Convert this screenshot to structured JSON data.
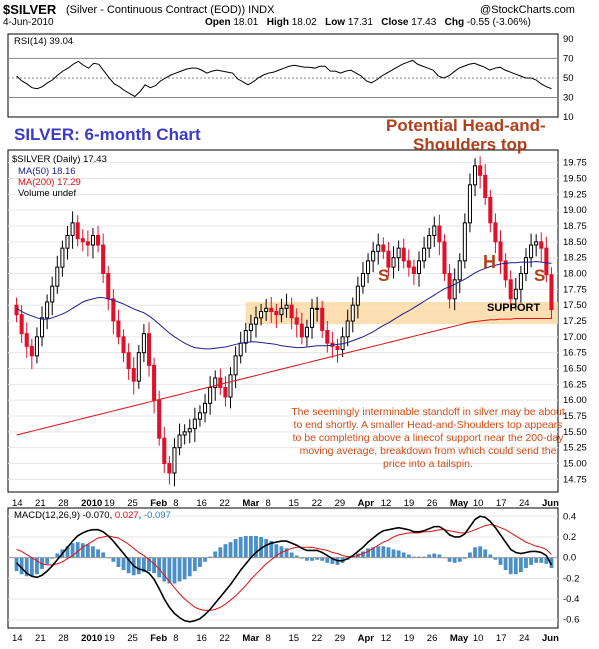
{
  "header": {
    "symbol": "$SILVER",
    "description": "(Silver - Continuous Contract (EOD)) INDX",
    "copyright": "@StockCharts.com",
    "date": "4-Jun-2010",
    "open_label": "Open",
    "open": "18.01",
    "high_label": "High",
    "high": "18.02",
    "low_label": "Low",
    "low": "17.31",
    "close_label": "Close",
    "close": "17.43",
    "chg_label": "Chg",
    "chg": "-0.55 (-3.06%)"
  },
  "rsi_panel": {
    "label": "RSI(14) 39.04"
  },
  "price_panel": {
    "legend_symbol": "$SILVER (Daily) 17.43",
    "legend_ma50": "MA(50) 18.16",
    "legend_ma200": "MA(200) 17.29",
    "legend_volume": "Volume undef"
  },
  "annotations": {
    "chart_title": "SILVER: 6-month Chart",
    "hs_title_line1": "Potential Head-and-",
    "hs_title_line2": "Shoulders top",
    "left_shoulder": "S",
    "head": "H",
    "right_shoulder": "S",
    "support": "SUPPORT",
    "note": "The seemingly interminable standoff in silver may be about to end shortly. A smaller Head-and-Shoulders top appears to be completing above a linecof support near the 200-day moving average, breakdown from which could send the price into a tailspin."
  },
  "macd_panel": {
    "label": "MACD(12,26,9)",
    "macd": "-0.070",
    "signal": "0.027",
    "hist": "-0.097"
  },
  "colors": {
    "up_candle": "#000000",
    "down_candle": "#e0102a",
    "ma50": "#1c1c8c",
    "ma200": "#e01010",
    "support_zone": "#fbd9a6",
    "title_blue": "#3b3bc7",
    "title_red": "#b0401c",
    "hist": "#4a8fc8",
    "macd_line": "#000000",
    "signal_line": "#e01010"
  },
  "chart_data": [
    {
      "type": "line",
      "title": "RSI(14)",
      "yticks": [
        10,
        30,
        50,
        70,
        90
      ],
      "ylim": [
        10,
        95
      ],
      "reference_lines": [
        30,
        50,
        70
      ],
      "series": [
        {
          "name": "RSI(14)",
          "values": [
            52,
            47,
            44,
            40,
            39,
            41,
            45,
            48,
            53,
            57,
            60,
            64,
            67,
            63,
            60,
            65,
            64,
            57,
            50,
            44,
            41,
            37,
            34,
            31,
            36,
            43,
            40,
            42,
            47,
            50,
            53,
            55,
            57,
            59,
            60,
            60,
            58,
            55,
            57,
            58,
            57,
            56,
            55,
            49,
            46,
            43,
            46,
            50,
            53,
            55,
            56,
            58,
            60,
            62,
            63,
            62,
            61,
            61,
            60,
            62,
            62,
            57,
            57,
            55,
            57,
            58,
            55,
            52,
            47,
            45,
            48,
            52,
            55,
            58,
            61,
            64,
            66,
            68,
            64,
            62,
            60,
            58,
            52,
            50,
            52,
            56,
            60,
            62,
            64,
            65,
            63,
            61,
            58,
            60,
            61,
            58,
            56,
            54,
            52,
            50,
            50,
            48,
            44,
            41,
            39.04
          ]
        }
      ]
    },
    {
      "type": "candlestick",
      "title": "$SILVER (Daily)",
      "yticks": [
        14.75,
        15.0,
        15.25,
        15.5,
        15.75,
        16.0,
        16.25,
        16.5,
        16.75,
        17.0,
        17.25,
        17.5,
        17.75,
        18.0,
        18.25,
        18.5,
        18.75,
        19.0,
        19.25,
        19.5,
        19.75
      ],
      "ylim": [
        14.55,
        19.95
      ],
      "xticks": [
        "14",
        "21",
        "28",
        "2010",
        "19",
        "25",
        "Feb",
        "8",
        "16",
        "22",
        "Mar",
        "8",
        "15",
        "22",
        "29",
        "Apr",
        "12",
        "19",
        "26",
        "May",
        "10",
        "17",
        "24",
        "Jun"
      ],
      "ma50_name": "MA(50)",
      "ma200_name": "MA(200)",
      "support_zone": [
        17.2,
        17.55
      ],
      "close": [
        17.35,
        17.05,
        16.85,
        16.7,
        17.0,
        17.3,
        17.55,
        17.8,
        18.1,
        18.4,
        18.6,
        18.8,
        18.55,
        18.5,
        18.45,
        18.6,
        18.45,
        18.0,
        17.6,
        17.25,
        17.0,
        16.75,
        16.5,
        16.3,
        16.75,
        17.05,
        16.55,
        16.0,
        15.4,
        15.0,
        14.85,
        15.25,
        15.45,
        15.5,
        15.55,
        15.7,
        15.8,
        15.95,
        16.2,
        16.35,
        16.2,
        16.05,
        16.4,
        16.7,
        16.9,
        17.1,
        17.2,
        17.3,
        17.4,
        17.45,
        17.4,
        17.35,
        17.45,
        17.5,
        17.3,
        17.2,
        17.0,
        17.15,
        17.45,
        17.45,
        17.1,
        16.9,
        16.85,
        16.8,
        17.0,
        17.25,
        17.5,
        17.8,
        18.0,
        18.2,
        18.35,
        18.45,
        18.35,
        18.1,
        18.25,
        18.4,
        18.2,
        18.1,
        18.0,
        18.2,
        18.4,
        18.6,
        18.75,
        18.5,
        18.0,
        17.6,
        17.9,
        18.2,
        18.8,
        19.4,
        19.7,
        19.55,
        19.2,
        18.8,
        18.5,
        18.2,
        17.9,
        17.6,
        17.75,
        18.0,
        18.25,
        18.45,
        18.5,
        18.4,
        17.98,
        17.43
      ],
      "ma50": [
        17.45,
        17.4,
        17.36,
        17.33,
        17.3,
        17.28,
        17.28,
        17.3,
        17.33,
        17.36,
        17.4,
        17.45,
        17.5,
        17.55,
        17.58,
        17.6,
        17.62,
        17.62,
        17.6,
        17.58,
        17.55,
        17.52,
        17.48,
        17.44,
        17.41,
        17.38,
        17.33,
        17.27,
        17.2,
        17.13,
        17.06,
        17.0,
        16.95,
        16.9,
        16.86,
        16.83,
        16.82,
        16.81,
        16.81,
        16.82,
        16.83,
        16.84,
        16.86,
        16.88,
        16.9,
        16.91,
        16.92,
        16.92,
        16.91,
        16.9,
        16.89,
        16.88,
        16.86,
        16.85,
        16.84,
        16.83,
        16.83,
        16.84,
        16.85,
        16.86,
        16.86,
        16.86,
        16.87,
        16.88,
        16.89,
        16.91,
        16.94,
        16.97,
        17.0,
        17.04,
        17.08,
        17.13,
        17.18,
        17.22,
        17.27,
        17.32,
        17.37,
        17.41,
        17.46,
        17.51,
        17.56,
        17.61,
        17.66,
        17.71,
        17.76,
        17.79,
        17.83,
        17.87,
        17.91,
        17.96,
        18.01,
        18.05,
        18.08,
        18.11,
        18.13,
        18.15,
        18.16,
        18.17,
        18.17,
        18.18,
        18.18,
        18.18,
        18.19,
        18.18,
        18.17,
        18.16
      ],
      "ma200": [
        15.45,
        15.47,
        15.49,
        15.51,
        15.53,
        15.55,
        15.57,
        15.59,
        15.61,
        15.63,
        15.65,
        15.67,
        15.69,
        15.71,
        15.73,
        15.75,
        15.77,
        15.79,
        15.81,
        15.83,
        15.85,
        15.87,
        15.89,
        15.91,
        15.93,
        15.95,
        15.97,
        15.99,
        16.01,
        16.03,
        16.05,
        16.07,
        16.09,
        16.11,
        16.13,
        16.15,
        16.17,
        16.19,
        16.21,
        16.23,
        16.25,
        16.27,
        16.29,
        16.31,
        16.33,
        16.35,
        16.37,
        16.39,
        16.41,
        16.43,
        16.45,
        16.47,
        16.49,
        16.51,
        16.53,
        16.55,
        16.57,
        16.59,
        16.61,
        16.63,
        16.65,
        16.67,
        16.69,
        16.71,
        16.73,
        16.75,
        16.77,
        16.79,
        16.81,
        16.83,
        16.85,
        16.87,
        16.89,
        16.91,
        16.93,
        16.95,
        16.97,
        16.99,
        17.01,
        17.03,
        17.05,
        17.07,
        17.09,
        17.11,
        17.13,
        17.15,
        17.17,
        17.19,
        17.21,
        17.23,
        17.24,
        17.25,
        17.26,
        17.27,
        17.27,
        17.28,
        17.28,
        17.28,
        17.29,
        17.29,
        17.29,
        17.29,
        17.29,
        17.29,
        17.29,
        17.29
      ]
    },
    {
      "type": "line",
      "title": "MACD(12,26,9)",
      "yticks": [
        0.4,
        0.2,
        0.0,
        -0.2,
        -0.4,
        -0.6
      ],
      "ylim": [
        -0.68,
        0.48
      ],
      "series": [
        {
          "name": "MACD",
          "values": [
            -0.05,
            -0.1,
            -0.15,
            -0.18,
            -0.19,
            -0.17,
            -0.13,
            -0.08,
            -0.02,
            0.04,
            0.1,
            0.16,
            0.21,
            0.24,
            0.26,
            0.27,
            0.27,
            0.25,
            0.21,
            0.16,
            0.1,
            0.04,
            -0.02,
            -0.08,
            -0.11,
            -0.12,
            -0.15,
            -0.21,
            -0.3,
            -0.4,
            -0.48,
            -0.54,
            -0.58,
            -0.61,
            -0.62,
            -0.61,
            -0.59,
            -0.55,
            -0.5,
            -0.44,
            -0.38,
            -0.32,
            -0.26,
            -0.19,
            -0.12,
            -0.06,
            0.0,
            0.05,
            0.09,
            0.12,
            0.14,
            0.15,
            0.16,
            0.16,
            0.14,
            0.12,
            0.09,
            0.07,
            0.07,
            0.07,
            0.05,
            0.02,
            -0.01,
            -0.03,
            -0.03,
            -0.01,
            0.02,
            0.06,
            0.1,
            0.15,
            0.19,
            0.23,
            0.26,
            0.27,
            0.28,
            0.29,
            0.28,
            0.27,
            0.25,
            0.25,
            0.26,
            0.28,
            0.3,
            0.3,
            0.27,
            0.22,
            0.2,
            0.2,
            0.23,
            0.3,
            0.37,
            0.4,
            0.39,
            0.35,
            0.29,
            0.22,
            0.15,
            0.08,
            0.05,
            0.04,
            0.05,
            0.06,
            0.06,
            0.05,
            0.02,
            -0.07
          ]
        },
        {
          "name": "Signal",
          "values": [
            0.08,
            0.06,
            0.03,
            0.0,
            -0.03,
            -0.06,
            -0.07,
            -0.07,
            -0.06,
            -0.04,
            -0.01,
            0.02,
            0.06,
            0.1,
            0.13,
            0.16,
            0.19,
            0.2,
            0.21,
            0.2,
            0.19,
            0.16,
            0.13,
            0.09,
            0.05,
            0.02,
            -0.02,
            -0.06,
            -0.11,
            -0.17,
            -0.23,
            -0.29,
            -0.35,
            -0.4,
            -0.44,
            -0.48,
            -0.5,
            -0.51,
            -0.51,
            -0.5,
            -0.48,
            -0.45,
            -0.41,
            -0.37,
            -0.32,
            -0.27,
            -0.21,
            -0.16,
            -0.11,
            -0.06,
            -0.02,
            0.02,
            0.05,
            0.07,
            0.09,
            0.1,
            0.1,
            0.1,
            0.1,
            0.09,
            0.08,
            0.07,
            0.05,
            0.04,
            0.02,
            0.01,
            0.01,
            0.02,
            0.04,
            0.06,
            0.09,
            0.12,
            0.15,
            0.17,
            0.2,
            0.22,
            0.23,
            0.24,
            0.24,
            0.24,
            0.25,
            0.25,
            0.26,
            0.27,
            0.27,
            0.26,
            0.25,
            0.24,
            0.24,
            0.25,
            0.27,
            0.29,
            0.31,
            0.32,
            0.31,
            0.29,
            0.27,
            0.24,
            0.21,
            0.18,
            0.15,
            0.13,
            0.11,
            0.1,
            0.08,
            0.03
          ]
        },
        {
          "name": "Histogram",
          "values": [
            -0.13,
            -0.16,
            -0.18,
            -0.18,
            -0.16,
            -0.11,
            -0.06,
            -0.01,
            0.04,
            0.08,
            0.11,
            0.14,
            0.15,
            0.14,
            0.13,
            0.11,
            0.08,
            0.05,
            0.0,
            -0.04,
            -0.09,
            -0.12,
            -0.15,
            -0.17,
            -0.16,
            -0.14,
            -0.13,
            -0.15,
            -0.19,
            -0.23,
            -0.25,
            -0.25,
            -0.23,
            -0.21,
            -0.18,
            -0.13,
            -0.09,
            -0.04,
            0.01,
            0.06,
            0.1,
            0.13,
            0.15,
            0.18,
            0.2,
            0.21,
            0.21,
            0.21,
            0.2,
            0.18,
            0.16,
            0.13,
            0.11,
            0.09,
            0.05,
            0.02,
            -0.01,
            -0.03,
            -0.03,
            -0.02,
            -0.03,
            -0.05,
            -0.06,
            -0.07,
            -0.05,
            -0.02,
            0.01,
            0.04,
            0.06,
            0.09,
            0.1,
            0.11,
            0.11,
            0.1,
            0.08,
            0.07,
            0.05,
            0.03,
            0.01,
            0.01,
            0.01,
            0.03,
            0.04,
            0.03,
            0.0,
            -0.04,
            -0.05,
            -0.04,
            -0.01,
            0.05,
            0.1,
            0.11,
            0.08,
            0.03,
            -0.02,
            -0.07,
            -0.12,
            -0.16,
            -0.16,
            -0.14,
            -0.1,
            -0.07,
            -0.05,
            -0.05,
            -0.06,
            -0.1
          ]
        }
      ]
    }
  ]
}
